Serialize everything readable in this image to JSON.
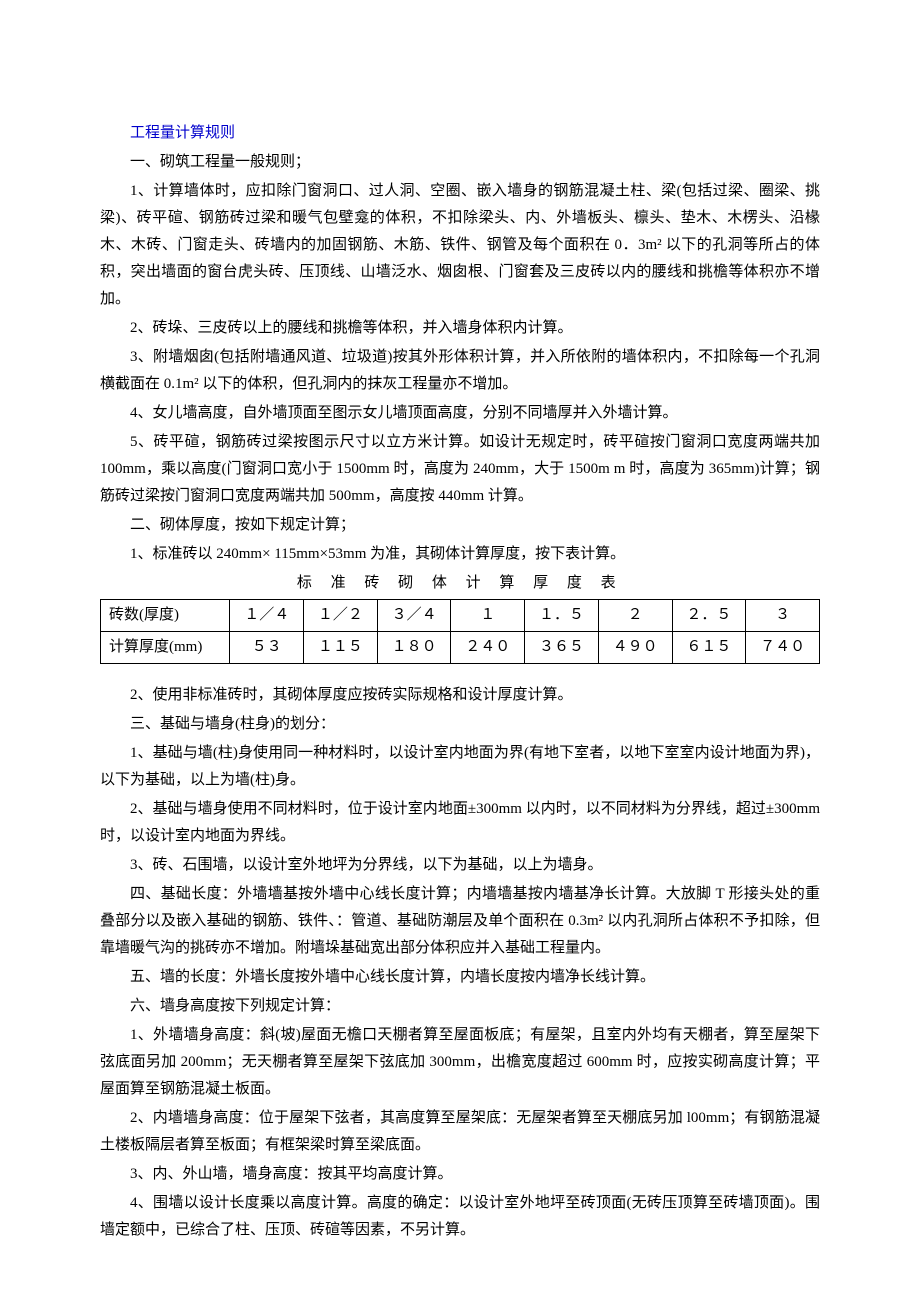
{
  "title": "工程量计算规则",
  "section1_heading": "一、砌筑工程量一般规则；",
  "p1": "1、计算墙体时，应扣除门窗洞口、过人洞、空圈、嵌入墙身的钢筋混凝土柱、梁(包括过梁、圈梁、挑梁)、砖平碹、钢筋砖过梁和暖气包壁龛的体积，不扣除梁头、内、外墙板头、檩头、垫木、木楞头、沿椽木、木砖、门窗走头、砖墙内的加固钢筋、木筋、铁件、钢管及每个面积在 0．3m² 以下的孔洞等所占的体积，突出墙面的窗台虎头砖、压顶线、山墙泛水、烟囱根、门窗套及三皮砖以内的腰线和挑檐等体积亦不增加。",
  "p2": "2、砖垛、三皮砖以上的腰线和挑檐等体积，并入墙身体积内计算。",
  "p3": "3、附墙烟囱(包括附墙通风道、垃圾道)按其外形体积计算，并入所依附的墙体积内，不扣除每一个孔洞横截面在 0.1m² 以下的体积，但孔洞内的抹灰工程量亦不增加。",
  "p4": "4、女儿墙高度，自外墙顶面至图示女儿墙顶面高度，分别不同墙厚并入外墙计算。",
  "p5": "5、砖平碹，钢筋砖过梁按图示尺寸以立方米计算。如设计无规定时，砖平碹按门窗洞口宽度两端共加 100mm，乘以高度(门窗洞口宽小于 1500mm 时，高度为 240mm，大于 1500m m 时，高度为 365mm)计算；钢筋砖过梁按门窗洞口宽度两端共加 500mm，高度按 440mm 计算。",
  "section2_heading": "二、砌体厚度，按如下规定计算；",
  "p6": "1、标准砖以 240mm× 115mm×53mm 为准，其砌体计算厚度，按下表计算。",
  "table_title": "标 准 砖 砌 体 计 算 厚 度 表",
  "table": {
    "row1_label": "砖数(厚度)",
    "row1": [
      "１／４",
      "１／２",
      "３／４",
      "１",
      "１．５",
      "２",
      "２．５",
      "３"
    ],
    "row2_label": "计算厚度(mm)",
    "row2": [
      "５３",
      "１１５",
      "１８０",
      "２４０",
      "３６５",
      "４９０",
      "６１５",
      "７４０"
    ]
  },
  "p7": "2、使用非标准砖时，其砌体厚度应按砖实际规格和设计厚度计算。",
  "section3_heading": "三、基础与墙身(柱身)的划分：",
  "p8": "1、基础与墙(柱)身使用同一种材料时，以设计室内地面为界(有地下室者，以地下室室内设计地面为界)，以下为基础，以上为墙(柱)身。",
  "p9": "2、基础与墙身使用不同材料时，位于设计室内地面±300mm 以内时，以不同材料为分界线，超过±300mm 时，以设计室内地面为界线。",
  "p10": "3、砖、石围墙，以设计室外地坪为分界线，以下为基础，以上为墙身。",
  "p11": "四、基础长度：外墙墙基按外墙中心线长度计算；内墙墙基按内墙基净长计算。大放脚 T 形接头处的重叠部分以及嵌入基础的钢筋、铁件、：管道、基础防潮层及单个面积在 0.3m² 以内孔洞所占体积不予扣除，但靠墙暖气沟的挑砖亦不增加。附墙垛基础宽出部分体积应并入基础工程量内。",
  "p12": "五、墙的长度：外墙长度按外墙中心线长度计算，内墙长度按内墙净长线计算。",
  "section6_heading": "六、墙身高度按下列规定计算：",
  "p13": "1、外墙墙身高度：斜(坡)屋面无檐口天棚者算至屋面板底；有屋架，且室内外均有天棚者，算至屋架下弦底面另加 200mm；无天棚者算至屋架下弦底加 300mm，出檐宽度超过 600mm 时，应按实砌高度计算；平屋面算至钢筋混凝土板面。",
  "p14": "2、内墙墙身高度：位于屋架下弦者，其高度算至屋架底：无屋架者算至天棚底另加 l00mm；有钢筋混凝土楼板隔层者算至板面；有框架梁时算至梁底面。",
  "p15": "3、内、外山墙，墙身高度：按其平均高度计算。",
  "p16": "4、围墙以设计长度乘以高度计算。高度的确定：以设计室外地坪至砖顶面(无砖压顶算至砖墙顶面)。围墙定额中，已综合了柱、压顶、砖碹等因素，不另计算。"
}
